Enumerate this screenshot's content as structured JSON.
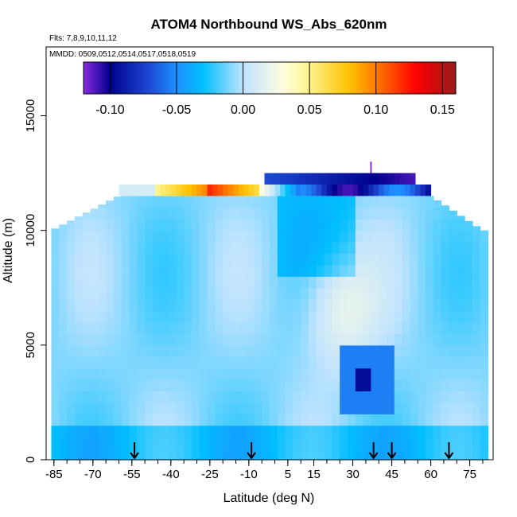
{
  "chart_data": {
    "type": "heatmap",
    "title": "ATOM4 Northbound WS_Abs_620nm",
    "annotations": {
      "flights": "Flts: 7,8,9,10,11,12",
      "dates": "MMDD: 0509,0512,0514,0517,0518,0519"
    },
    "xlabel": "Latitude (deg N)",
    "ylabel": "Altitude (m)",
    "xlim": [
      -88,
      84
    ],
    "ylim": [
      0,
      18000
    ],
    "x_ticks": [
      -85,
      -70,
      -55,
      -40,
      -25,
      -10,
      5,
      15,
      30,
      45,
      60,
      75
    ],
    "y_ticks": [
      0,
      5000,
      10000,
      15000
    ],
    "colorbar": {
      "min": -0.12,
      "max": 0.16,
      "ticks": [
        -0.1,
        -0.05,
        0.0,
        0.05,
        0.1,
        0.15
      ],
      "tick_labels": [
        "-0.10",
        "-0.05",
        "0.00",
        "0.05",
        "0.10",
        "0.15"
      ],
      "stops": [
        {
          "v": -0.12,
          "c": "#8a2be2"
        },
        {
          "v": -0.1,
          "c": "#00008b"
        },
        {
          "v": -0.07,
          "c": "#1e4bd6"
        },
        {
          "v": -0.05,
          "c": "#1e90ff"
        },
        {
          "v": -0.03,
          "c": "#00bfff"
        },
        {
          "v": 0.0,
          "c": "#bfe3ff"
        },
        {
          "v": 0.03,
          "c": "#fffde0"
        },
        {
          "v": 0.05,
          "c": "#fff38a"
        },
        {
          "v": 0.08,
          "c": "#ffc200"
        },
        {
          "v": 0.1,
          "c": "#ff7a00"
        },
        {
          "v": 0.13,
          "c": "#ff0000"
        },
        {
          "v": 0.16,
          "c": "#9b1b1b"
        }
      ]
    },
    "grid": false,
    "arrow_latitudes": [
      -54,
      -9,
      38,
      45,
      67
    ],
    "coverage": {
      "lat_min": -86,
      "lat_max": 80,
      "alt_min": 0,
      "alt_top_at_south": 10000,
      "alt_top_center": 12000,
      "upper_band_lat_range": [
        -60,
        60
      ],
      "upper_band_alt_range": [
        11500,
        12000
      ],
      "top_band_lat_range": [
        -4,
        53
      ],
      "top_band_alt_range": [
        12000,
        12500
      ],
      "marker_lat": 37,
      "marker_alt": [
        12500,
        13000
      ]
    },
    "features": [
      {
        "name": "background",
        "value": -0.01
      },
      {
        "name": "mid-trop clean region",
        "lat": [
          10,
          40
        ],
        "alt": [
          4000,
          9000
        ],
        "value": 0.02
      },
      {
        "name": "absorbing layer 3-4 km",
        "lat": [
          25,
          45
        ],
        "alt": [
          2000,
          5000
        ],
        "value": -0.06
      },
      {
        "name": "core of layer",
        "lat": [
          30,
          38
        ],
        "alt": [
          2800,
          4200
        ],
        "value": -0.1
      },
      {
        "name": "upper band positive",
        "lat": [
          -45,
          -5
        ],
        "alt": [
          11500,
          12000
        ],
        "value": 0.12
      },
      {
        "name": "upper band negative",
        "lat": [
          10,
          60
        ],
        "alt": [
          11500,
          12000
        ],
        "value": -0.09
      },
      {
        "name": "top band",
        "lat": [
          -4,
          53
        ],
        "alt": [
          12000,
          12500
        ],
        "value": -0.09
      }
    ]
  }
}
